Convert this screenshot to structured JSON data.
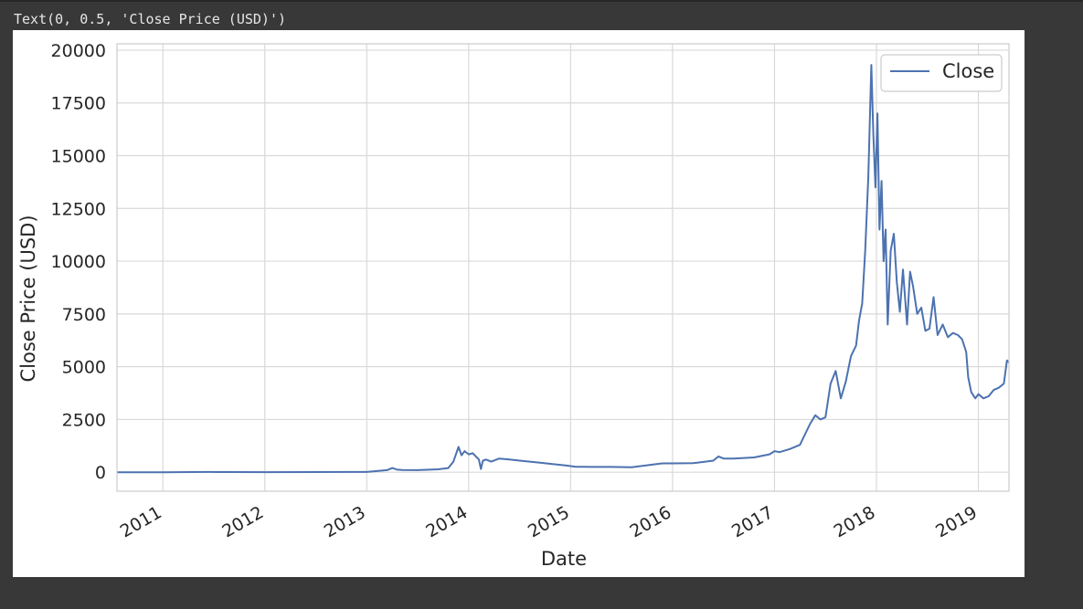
{
  "output_text": "Text(0, 0.5, 'Close Price (USD)')",
  "chart_data": {
    "type": "line",
    "xlabel": "Date",
    "ylabel": "Close Price (USD)",
    "xlim": [
      2010.55,
      2019.3
    ],
    "ylim": [
      -900,
      20300
    ],
    "x_ticks": [
      2011,
      2012,
      2013,
      2014,
      2015,
      2016,
      2017,
      2018,
      2019
    ],
    "x_tick_labels": [
      "2011",
      "2012",
      "2013",
      "2014",
      "2015",
      "2016",
      "2017",
      "2018",
      "2019"
    ],
    "y_ticks": [
      0,
      2500,
      5000,
      7500,
      10000,
      12500,
      15000,
      17500,
      20000
    ],
    "y_tick_labels": [
      "0",
      "2500",
      "5000",
      "7500",
      "10000",
      "12500",
      "15000",
      "17500",
      "20000"
    ],
    "grid": true,
    "legend_position": "top-right",
    "series": [
      {
        "name": "Close",
        "color": "#4c72b0",
        "x": [
          2010.55,
          2011.0,
          2011.45,
          2011.55,
          2012.0,
          2012.5,
          2013.0,
          2013.2,
          2013.25,
          2013.3,
          2013.35,
          2013.5,
          2013.7,
          2013.8,
          2013.85,
          2013.9,
          2013.93,
          2013.96,
          2014.0,
          2014.04,
          2014.08,
          2014.1,
          2014.12,
          2014.14,
          2014.17,
          2014.22,
          2014.3,
          2014.4,
          2014.5,
          2014.6,
          2014.7,
          2014.8,
          2014.95,
          2015.05,
          2015.2,
          2015.4,
          2015.6,
          2015.8,
          2015.9,
          2016.0,
          2016.2,
          2016.4,
          2016.45,
          2016.5,
          2016.6,
          2016.8,
          2016.95,
          2017.0,
          2017.05,
          2017.15,
          2017.25,
          2017.35,
          2017.4,
          2017.45,
          2017.5,
          2017.55,
          2017.6,
          2017.65,
          2017.7,
          2017.75,
          2017.8,
          2017.83,
          2017.86,
          2017.89,
          2017.92,
          2017.95,
          2017.97,
          2017.99,
          2018.01,
          2018.03,
          2018.05,
          2018.07,
          2018.09,
          2018.11,
          2018.14,
          2018.17,
          2018.2,
          2018.23,
          2018.26,
          2018.3,
          2018.33,
          2018.36,
          2018.4,
          2018.44,
          2018.48,
          2018.52,
          2018.56,
          2018.6,
          2018.65,
          2018.7,
          2018.75,
          2018.8,
          2018.84,
          2018.88,
          2018.9,
          2018.93,
          2018.97,
          2019.0,
          2019.05,
          2019.1,
          2019.15,
          2019.2,
          2019.25,
          2019.28,
          2019.3
        ],
        "y": [
          0,
          0,
          15,
          10,
          5,
          10,
          15,
          100,
          200,
          120,
          110,
          100,
          140,
          200,
          500,
          1200,
          800,
          1000,
          850,
          900,
          700,
          600,
          150,
          550,
          600,
          500,
          650,
          600,
          550,
          500,
          450,
          400,
          320,
          260,
          250,
          250,
          240,
          360,
          420,
          420,
          430,
          550,
          750,
          650,
          650,
          700,
          850,
          1000,
          950,
          1100,
          1300,
          2300,
          2700,
          2500,
          2600,
          4200,
          4800,
          3500,
          4300,
          5500,
          6000,
          7200,
          8000,
          10500,
          14000,
          19300,
          16000,
          13500,
          17000,
          11500,
          13800,
          10000,
          11500,
          7000,
          10500,
          11300,
          9000,
          7600,
          9600,
          7000,
          9500,
          8800,
          7500,
          7800,
          6700,
          6800,
          8300,
          6500,
          7000,
          6400,
          6600,
          6500,
          6300,
          5700,
          4500,
          3800,
          3500,
          3700,
          3500,
          3600,
          3900,
          4000,
          4200,
          5300,
          5200
        ]
      }
    ]
  }
}
